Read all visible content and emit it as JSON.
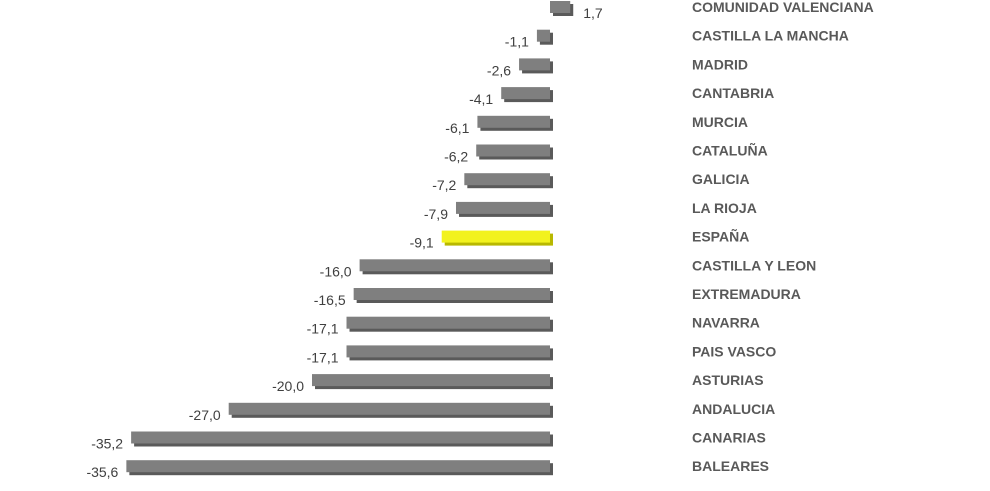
{
  "chart_data": {
    "type": "bar",
    "orientation": "horizontal",
    "xlim": [
      -35.6,
      1.7
    ],
    "grid": false,
    "legend": "none",
    "categories": [
      "COMUNIDAD VALENCIANA",
      "CASTILLA LA MANCHA",
      "MADRID",
      "CANTABRIA",
      "MURCIA",
      "CATALUÑA",
      "GALICIA",
      "LA RIOJA",
      "ESPAÑA",
      "CASTILLA Y LEON",
      "EXTREMADURA",
      "NAVARRA",
      "PAIS VASCO",
      "ASTURIAS",
      "ANDALUCIA",
      "CANARIAS",
      "BALEARES"
    ],
    "values": [
      1.7,
      -1.1,
      -2.6,
      -4.1,
      -6.1,
      -6.2,
      -7.2,
      -7.9,
      -9.1,
      -16.0,
      -16.5,
      -17.1,
      -17.1,
      -20.0,
      -27.0,
      -35.2,
      -35.6
    ],
    "value_labels": [
      "1,7",
      "-1,1",
      "-2,6",
      "-4,1",
      "-6,1",
      "-6,2",
      "-7,2",
      "-7,9",
      "-9,1",
      "-16,0",
      "-16,5",
      "-17,1",
      "-17,1",
      "-20,0",
      "-27,0",
      "-35,2",
      "-35,6"
    ],
    "highlight_category": "ESPAÑA",
    "colors": {
      "bar": "#7f7f7f",
      "bar_shadow": "#5a5a5a",
      "highlight": "#f2f21e",
      "highlight_shadow": "#b8b800"
    }
  }
}
